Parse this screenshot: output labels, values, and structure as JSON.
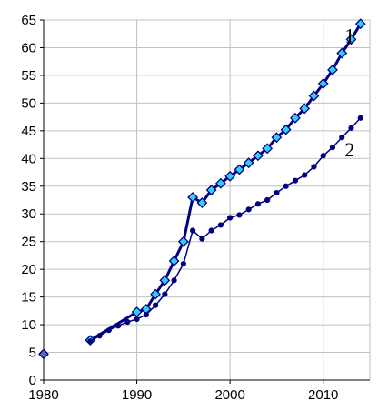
{
  "chart_data": {
    "type": "line",
    "title": "",
    "xlabel": "",
    "ylabel": "",
    "xlim": [
      1980,
      2015
    ],
    "ylim": [
      0,
      65
    ],
    "x_ticks": [
      1980,
      1990,
      2000,
      2010
    ],
    "y_ticks": [
      0,
      5,
      10,
      15,
      20,
      25,
      30,
      35,
      40,
      45,
      50,
      55,
      60,
      65
    ],
    "grid": true,
    "legend": "none",
    "series": [
      {
        "name": "1",
        "color": "#000080",
        "marker": "diamond",
        "marker_fill": "#33ccff",
        "points": [
          [
            1985,
            7.2
          ],
          [
            1990,
            12.3
          ],
          [
            1991,
            12.8
          ],
          [
            1992,
            15.5
          ],
          [
            1993,
            18.0
          ],
          [
            1994,
            21.5
          ],
          [
            1995,
            25.0
          ],
          [
            1996,
            33.0
          ],
          [
            1997,
            32.0
          ],
          [
            1998,
            34.3
          ],
          [
            1999,
            35.5
          ],
          [
            2000,
            36.8
          ],
          [
            2001,
            38.0
          ],
          [
            2002,
            39.2
          ],
          [
            2003,
            40.5
          ],
          [
            2004,
            41.8
          ],
          [
            2005,
            43.8
          ],
          [
            2006,
            45.2
          ],
          [
            2007,
            47.3
          ],
          [
            2008,
            49.0
          ],
          [
            2009,
            51.3
          ],
          [
            2010,
            53.5
          ],
          [
            2011,
            56.0
          ],
          [
            2012,
            59.0
          ],
          [
            2013,
            61.5
          ],
          [
            2014,
            64.3
          ]
        ]
      },
      {
        "name": "2",
        "color": "#000080",
        "marker": "circle",
        "marker_fill": "#000080",
        "points": [
          [
            1985,
            7.0
          ],
          [
            1986,
            8.0
          ],
          [
            1987,
            9.0
          ],
          [
            1988,
            9.8
          ],
          [
            1989,
            10.5
          ],
          [
            1990,
            11.0
          ],
          [
            1991,
            11.8
          ],
          [
            1992,
            13.5
          ],
          [
            1993,
            15.5
          ],
          [
            1994,
            18.0
          ],
          [
            1995,
            21.0
          ],
          [
            1996,
            27.0
          ],
          [
            1997,
            25.5
          ],
          [
            1998,
            27.0
          ],
          [
            1999,
            28.0
          ],
          [
            2000,
            29.3
          ],
          [
            2001,
            29.8
          ],
          [
            2002,
            30.8
          ],
          [
            2003,
            31.8
          ],
          [
            2004,
            32.5
          ],
          [
            2005,
            33.8
          ],
          [
            2006,
            35.0
          ],
          [
            2007,
            36.0
          ],
          [
            2008,
            37.0
          ],
          [
            2009,
            38.5
          ],
          [
            2010,
            40.5
          ],
          [
            2011,
            42.0
          ],
          [
            2012,
            43.8
          ],
          [
            2013,
            45.5
          ],
          [
            2014,
            47.3
          ]
        ]
      }
    ],
    "extra_points": [
      {
        "x": 1980,
        "y": 4.7,
        "color": "#000080",
        "marker": "diamond",
        "marker_fill": "#5a6fa8"
      }
    ]
  }
}
